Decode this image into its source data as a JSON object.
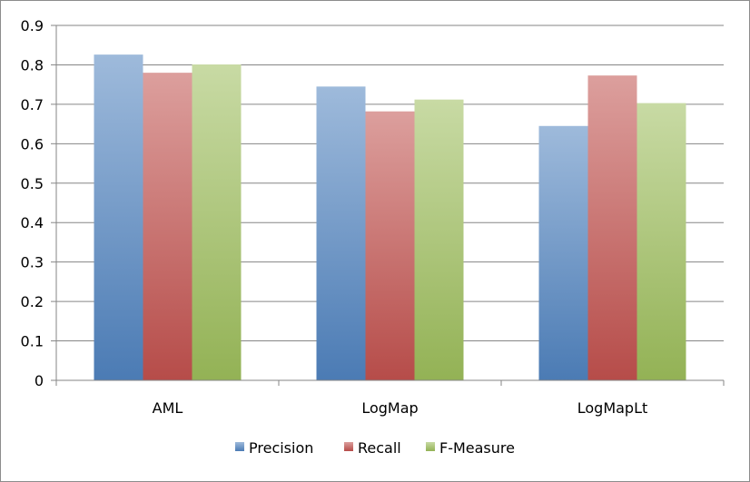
{
  "chart_data": {
    "type": "bar",
    "categories": [
      "AML",
      "LogMap",
      "LogMapLt"
    ],
    "series": [
      {
        "name": "Precision",
        "values": [
          0.826,
          0.745,
          0.645
        ],
        "color": "#4f81bd"
      },
      {
        "name": "Recall",
        "values": [
          0.78,
          0.682,
          0.773
        ],
        "color": "#c0504d"
      },
      {
        "name": "F-Measure",
        "values": [
          0.801,
          0.712,
          0.703
        ],
        "color": "#9bbb59"
      }
    ],
    "ylim": [
      0,
      0.9
    ],
    "yticks": [
      "0",
      "0.1",
      "0.2",
      "0.3",
      "0.4",
      "0.5",
      "0.6",
      "0.7",
      "0.8",
      "0.9"
    ],
    "grid": true,
    "legend_position": "bottom"
  }
}
